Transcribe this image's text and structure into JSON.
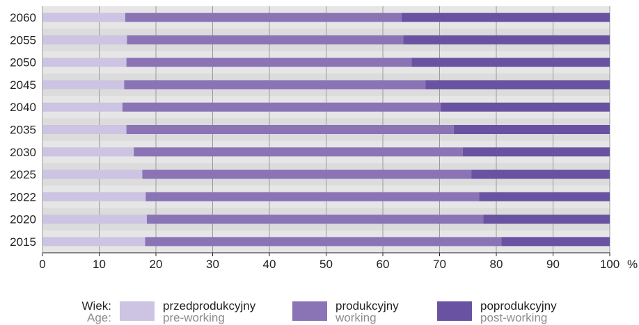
{
  "chart_data": {
    "type": "bar",
    "orientation": "horizontal",
    "stacked": true,
    "categories": [
      "2060",
      "2055",
      "2050",
      "2045",
      "2040",
      "2035",
      "2030",
      "2025",
      "2022",
      "2020",
      "2015"
    ],
    "series": [
      {
        "name": "przedprodukcyjny",
        "name_en": "pre-working",
        "color": "#cdc3e2",
        "values": [
          14.6,
          14.9,
          14.8,
          14.4,
          14.1,
          14.8,
          16.1,
          17.6,
          18.2,
          18.4,
          18.1
        ]
      },
      {
        "name": "produkcyjny",
        "name_en": "working",
        "color": "#8a74b6",
        "values": [
          48.7,
          48.7,
          50.3,
          53.1,
          56.1,
          57.7,
          58.0,
          58.0,
          58.8,
          59.3,
          62.8
        ]
      },
      {
        "name": "poprodukcyjny",
        "name_en": "post-working",
        "color": "#6a52a3",
        "values": [
          36.7,
          36.4,
          34.9,
          32.5,
          29.8,
          27.5,
          25.9,
          24.4,
          23.0,
          22.3,
          19.1
        ]
      }
    ],
    "xlim": [
      0,
      100
    ],
    "xticks": [
      "0",
      "10",
      "20",
      "30",
      "40",
      "50",
      "60",
      "70",
      "80",
      "90",
      "100"
    ],
    "xunit": "%",
    "grid": true,
    "legend_position": "bottom",
    "legend": {
      "label_pl": "Wiek:",
      "label_en": "Age:"
    }
  }
}
